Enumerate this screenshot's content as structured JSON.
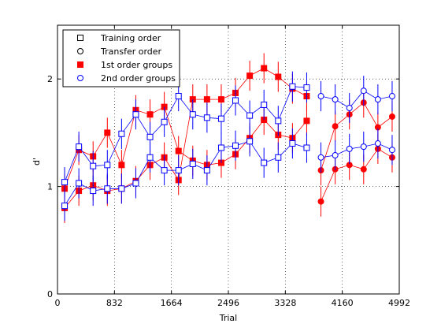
{
  "chart_data": {
    "type": "line",
    "xlabel": "Trial",
    "ylabel": "d'",
    "xlim": [
      0,
      4992
    ],
    "ylim": [
      0,
      2.5
    ],
    "xticks": [
      0,
      832,
      1664,
      2496,
      3328,
      4160,
      4992
    ],
    "yticks": [
      0,
      1,
      2
    ],
    "grid": "dotted, at tick positions",
    "legend_position": "top-left",
    "legend": [
      {
        "label": "Training order",
        "marker": "square",
        "filled": false,
        "color": "#000000"
      },
      {
        "label": "Transfer order",
        "marker": "circle",
        "filled": false,
        "color": "#000000"
      },
      {
        "label": "1st order groups",
        "marker": "square",
        "filled": true,
        "color": "#ff0000"
      },
      {
        "label": "2nd order groups",
        "marker": "circle",
        "filled": false,
        "color": "#0000ff"
      }
    ],
    "series": [
      {
        "group": "1st order groups",
        "marker": "square",
        "marker_face": "#ff0000",
        "marker_edge": "#ff0000",
        "line_color": "#ff0000",
        "segments": [
          {
            "x": [
              104,
              312,
              520,
              728,
              936,
              1144,
              1352,
              1560,
              1768,
              1976,
              2184,
              2392,
              2600,
              2808,
              3016,
              3224,
              3432,
              3640
            ],
            "y": [
              0.8,
              0.96,
              1.01,
              0.96,
              0.98,
              1.05,
              1.2,
              1.27,
              1.06,
              1.81,
              1.81,
              1.81,
              1.87,
              2.03,
              2.1,
              2.02,
              1.91,
              1.84
            ],
            "err": [
              0.14,
              0.14,
              0.14,
              0.14,
              0.14,
              0.14,
              0.14,
              0.14,
              0.14,
              0.14,
              0.14,
              0.14,
              0.14,
              0.14,
              0.14,
              0.14,
              0.14,
              0.14
            ]
          },
          {
            "x": [
              104,
              312,
              520,
              728,
              936,
              1144,
              1352,
              1560,
              1768,
              1976,
              2184,
              2392,
              2600,
              2808,
              3016,
              3224,
              3432,
              3640
            ],
            "y": [
              0.98,
              1.34,
              1.28,
              1.5,
              1.2,
              1.71,
              1.67,
              1.74,
              1.33,
              1.24,
              1.2,
              1.22,
              1.3,
              1.45,
              1.62,
              1.48,
              1.45,
              1.61
            ],
            "err": [
              0.14,
              0.14,
              0.14,
              0.14,
              0.14,
              0.14,
              0.14,
              0.14,
              0.14,
              0.14,
              0.14,
              0.14,
              0.14,
              0.14,
              0.14,
              0.14,
              0.14,
              0.14
            ]
          }
        ]
      },
      {
        "group": "1st order groups",
        "marker": "circle",
        "marker_face": "#ff0000",
        "marker_edge": "#ff0000",
        "line_color": "#ff0000",
        "segments": [
          {
            "x": [
              3848,
              4056,
              4264,
              4472,
              4680,
              4888
            ],
            "y": [
              0.86,
              1.16,
              1.2,
              1.16,
              1.35,
              1.27
            ],
            "err": [
              0.14,
              0.14,
              0.14,
              0.14,
              0.14,
              0.14
            ]
          },
          {
            "x": [
              3848,
              4056,
              4264,
              4472,
              4680,
              4888
            ],
            "y": [
              1.15,
              1.56,
              1.67,
              1.78,
              1.55,
              1.65
            ],
            "err": [
              0.14,
              0.14,
              0.14,
              0.14,
              0.14,
              0.14
            ]
          }
        ]
      },
      {
        "group": "2nd order groups",
        "marker": "square",
        "marker_face": "#ffffff",
        "marker_edge": "#0000ff",
        "line_color": "#0000ff",
        "segments": [
          {
            "x": [
              104,
              312,
              520,
              728,
              936,
              1144,
              1352,
              1560,
              1768,
              1976,
              2184,
              2392,
              2600,
              2808,
              3016,
              3224,
              3432,
              3640
            ],
            "y": [
              0.82,
              1.03,
              0.96,
              0.98,
              0.98,
              1.03,
              1.27,
              1.15,
              1.15,
              1.21,
              1.15,
              1.36,
              1.38,
              1.42,
              1.22,
              1.27,
              1.4,
              1.36
            ],
            "err": [
              0.14,
              0.14,
              0.14,
              0.14,
              0.14,
              0.14,
              0.14,
              0.14,
              0.14,
              0.14,
              0.14,
              0.14,
              0.14,
              0.14,
              0.14,
              0.14,
              0.14,
              0.14
            ]
          },
          {
            "x": [
              104,
              312,
              520,
              728,
              936,
              1144,
              1352,
              1560,
              1768,
              1976,
              2184,
              2392,
              2600,
              2808,
              3016,
              3224,
              3432,
              3640
            ],
            "y": [
              1.04,
              1.37,
              1.19,
              1.2,
              1.49,
              1.67,
              1.46,
              1.6,
              1.84,
              1.67,
              1.64,
              1.63,
              1.8,
              1.66,
              1.76,
              1.61,
              1.93,
              1.92
            ],
            "err": [
              0.14,
              0.14,
              0.14,
              0.14,
              0.14,
              0.14,
              0.14,
              0.14,
              0.14,
              0.14,
              0.14,
              0.14,
              0.14,
              0.14,
              0.14,
              0.14,
              0.14,
              0.14
            ]
          }
        ]
      },
      {
        "group": "2nd order groups",
        "marker": "circle",
        "marker_face": "#ffffff",
        "marker_edge": "#0000ff",
        "line_color": "#0000ff",
        "segments": [
          {
            "x": [
              3848,
              4056,
              4264,
              4472,
              4680,
              4888
            ],
            "y": [
              1.27,
              1.29,
              1.35,
              1.37,
              1.4,
              1.34
            ],
            "err": [
              0.14,
              0.14,
              0.14,
              0.14,
              0.14,
              0.14
            ]
          },
          {
            "x": [
              3848,
              4056,
              4264,
              4472,
              4680,
              4888
            ],
            "y": [
              1.84,
              1.81,
              1.73,
              1.89,
              1.81,
              1.84
            ],
            "err": [
              0.14,
              0.14,
              0.14,
              0.14,
              0.14,
              0.14
            ]
          }
        ]
      }
    ]
  }
}
